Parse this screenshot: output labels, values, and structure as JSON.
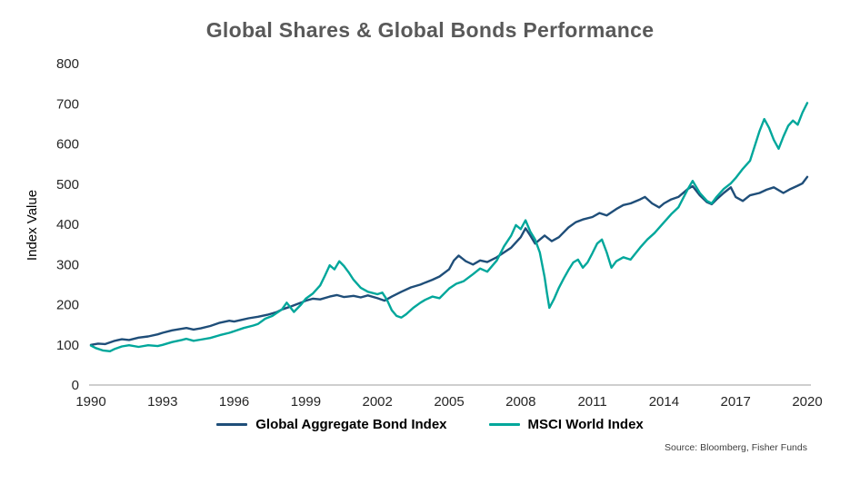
{
  "colors": {
    "title": "#595959",
    "axis_text": "#262626",
    "axis_line": "#9e9e9e",
    "background": "#ffffff"
  },
  "chart_data": {
    "type": "line",
    "title": "Global Shares & Global Bonds Performance",
    "xlabel": "",
    "ylabel": "Index Value",
    "xlim": [
      1990,
      2020
    ],
    "ylim": [
      0,
      800
    ],
    "x_ticks": [
      1990,
      1993,
      1996,
      1999,
      2002,
      2005,
      2008,
      2011,
      2014,
      2017,
      2020
    ],
    "y_ticks": [
      0,
      100,
      200,
      300,
      400,
      500,
      600,
      700,
      800
    ],
    "grid": false,
    "legend_position": "bottom",
    "source": "Source: Bloomberg, Fisher Funds",
    "series": [
      {
        "name": "Global Aggregate Bond Index",
        "color": "#1f4e79",
        "points": [
          [
            1990,
            100
          ],
          [
            1990.3,
            103
          ],
          [
            1990.6,
            102
          ],
          [
            1991,
            110
          ],
          [
            1991.3,
            114
          ],
          [
            1991.6,
            112
          ],
          [
            1992,
            118
          ],
          [
            1992.4,
            121
          ],
          [
            1992.8,
            126
          ],
          [
            1993,
            130
          ],
          [
            1993.4,
            136
          ],
          [
            1993.8,
            140
          ],
          [
            1994,
            142
          ],
          [
            1994.3,
            138
          ],
          [
            1994.6,
            141
          ],
          [
            1995,
            147
          ],
          [
            1995.4,
            155
          ],
          [
            1995.8,
            160
          ],
          [
            1996,
            158
          ],
          [
            1996.3,
            162
          ],
          [
            1996.6,
            166
          ],
          [
            1997,
            170
          ],
          [
            1997.4,
            175
          ],
          [
            1997.8,
            182
          ],
          [
            1998,
            188
          ],
          [
            1998.4,
            196
          ],
          [
            1998.8,
            205
          ],
          [
            1999,
            210
          ],
          [
            1999.3,
            215
          ],
          [
            1999.6,
            213
          ],
          [
            2000,
            220
          ],
          [
            2000.3,
            224
          ],
          [
            2000.6,
            219
          ],
          [
            2001,
            222
          ],
          [
            2001.3,
            218
          ],
          [
            2001.6,
            223
          ],
          [
            2002,
            216
          ],
          [
            2002.3,
            210
          ],
          [
            2002.6,
            220
          ],
          [
            2003,
            232
          ],
          [
            2003.4,
            243
          ],
          [
            2003.8,
            250
          ],
          [
            2004,
            255
          ],
          [
            2004.3,
            262
          ],
          [
            2004.6,
            270
          ],
          [
            2005,
            288
          ],
          [
            2005.2,
            310
          ],
          [
            2005.4,
            322
          ],
          [
            2005.7,
            308
          ],
          [
            2006,
            300
          ],
          [
            2006.3,
            310
          ],
          [
            2006.6,
            306
          ],
          [
            2007,
            318
          ],
          [
            2007.3,
            330
          ],
          [
            2007.6,
            342
          ],
          [
            2008,
            368
          ],
          [
            2008.2,
            390
          ],
          [
            2008.4,
            372
          ],
          [
            2008.6,
            352
          ],
          [
            2008.8,
            362
          ],
          [
            2009,
            372
          ],
          [
            2009.3,
            358
          ],
          [
            2009.6,
            368
          ],
          [
            2010,
            392
          ],
          [
            2010.3,
            405
          ],
          [
            2010.6,
            412
          ],
          [
            2011,
            418
          ],
          [
            2011.3,
            428
          ],
          [
            2011.6,
            422
          ],
          [
            2012,
            438
          ],
          [
            2012.3,
            448
          ],
          [
            2012.6,
            452
          ],
          [
            2013,
            462
          ],
          [
            2013.2,
            468
          ],
          [
            2013.5,
            452
          ],
          [
            2013.8,
            442
          ],
          [
            2014,
            452
          ],
          [
            2014.3,
            462
          ],
          [
            2014.6,
            468
          ],
          [
            2015,
            488
          ],
          [
            2015.2,
            495
          ],
          [
            2015.5,
            472
          ],
          [
            2015.8,
            455
          ],
          [
            2016,
            450
          ],
          [
            2016.2,
            462
          ],
          [
            2016.5,
            478
          ],
          [
            2016.8,
            492
          ],
          [
            2017,
            468
          ],
          [
            2017.3,
            458
          ],
          [
            2017.6,
            472
          ],
          [
            2018,
            478
          ],
          [
            2018.3,
            486
          ],
          [
            2018.6,
            492
          ],
          [
            2019,
            478
          ],
          [
            2019.3,
            488
          ],
          [
            2019.6,
            496
          ],
          [
            2019.8,
            502
          ],
          [
            2020,
            518
          ]
        ]
      },
      {
        "name": "MSCI World Index",
        "color": "#00a79b",
        "points": [
          [
            1990,
            98
          ],
          [
            1990.2,
            92
          ],
          [
            1990.5,
            86
          ],
          [
            1990.8,
            84
          ],
          [
            1991,
            90
          ],
          [
            1991.3,
            96
          ],
          [
            1991.6,
            99
          ],
          [
            1992,
            95
          ],
          [
            1992.4,
            99
          ],
          [
            1992.8,
            97
          ],
          [
            1993,
            100
          ],
          [
            1993.4,
            107
          ],
          [
            1993.8,
            112
          ],
          [
            1994,
            115
          ],
          [
            1994.3,
            110
          ],
          [
            1994.6,
            113
          ],
          [
            1995,
            117
          ],
          [
            1995.4,
            124
          ],
          [
            1995.8,
            130
          ],
          [
            1996,
            134
          ],
          [
            1996.4,
            142
          ],
          [
            1996.8,
            148
          ],
          [
            1997,
            152
          ],
          [
            1997.3,
            165
          ],
          [
            1997.6,
            172
          ],
          [
            1998,
            188
          ],
          [
            1998.2,
            205
          ],
          [
            1998.5,
            182
          ],
          [
            1998.8,
            200
          ],
          [
            1999,
            215
          ],
          [
            1999.3,
            228
          ],
          [
            1999.6,
            248
          ],
          [
            1999.8,
            272
          ],
          [
            2000,
            298
          ],
          [
            2000.2,
            288
          ],
          [
            2000.4,
            308
          ],
          [
            2000.6,
            296
          ],
          [
            2000.8,
            280
          ],
          [
            2001,
            262
          ],
          [
            2001.3,
            242
          ],
          [
            2001.6,
            232
          ],
          [
            2002,
            226
          ],
          [
            2002.2,
            230
          ],
          [
            2002.4,
            212
          ],
          [
            2002.6,
            186
          ],
          [
            2002.8,
            172
          ],
          [
            2003,
            168
          ],
          [
            2003.2,
            176
          ],
          [
            2003.5,
            192
          ],
          [
            2003.8,
            205
          ],
          [
            2004,
            212
          ],
          [
            2004.3,
            220
          ],
          [
            2004.6,
            216
          ],
          [
            2005,
            240
          ],
          [
            2005.3,
            252
          ],
          [
            2005.6,
            258
          ],
          [
            2006,
            276
          ],
          [
            2006.3,
            290
          ],
          [
            2006.6,
            282
          ],
          [
            2007,
            310
          ],
          [
            2007.3,
            345
          ],
          [
            2007.6,
            372
          ],
          [
            2007.8,
            398
          ],
          [
            2008,
            388
          ],
          [
            2008.2,
            410
          ],
          [
            2008.4,
            382
          ],
          [
            2008.6,
            362
          ],
          [
            2008.8,
            330
          ],
          [
            2009,
            268
          ],
          [
            2009.1,
            228
          ],
          [
            2009.2,
            192
          ],
          [
            2009.4,
            215
          ],
          [
            2009.6,
            242
          ],
          [
            2009.8,
            265
          ],
          [
            2010,
            286
          ],
          [
            2010.2,
            305
          ],
          [
            2010.4,
            312
          ],
          [
            2010.6,
            292
          ],
          [
            2010.8,
            305
          ],
          [
            2011,
            328
          ],
          [
            2011.2,
            352
          ],
          [
            2011.4,
            362
          ],
          [
            2011.6,
            330
          ],
          [
            2011.8,
            292
          ],
          [
            2012,
            308
          ],
          [
            2012.3,
            318
          ],
          [
            2012.6,
            312
          ],
          [
            2013,
            342
          ],
          [
            2013.3,
            362
          ],
          [
            2013.6,
            378
          ],
          [
            2014,
            405
          ],
          [
            2014.3,
            425
          ],
          [
            2014.6,
            442
          ],
          [
            2015,
            488
          ],
          [
            2015.2,
            508
          ],
          [
            2015.5,
            478
          ],
          [
            2015.8,
            458
          ],
          [
            2016,
            452
          ],
          [
            2016.2,
            468
          ],
          [
            2016.5,
            488
          ],
          [
            2016.8,
            502
          ],
          [
            2017,
            515
          ],
          [
            2017.3,
            538
          ],
          [
            2017.6,
            558
          ],
          [
            2018,
            632
          ],
          [
            2018.2,
            662
          ],
          [
            2018.4,
            640
          ],
          [
            2018.6,
            610
          ],
          [
            2018.8,
            588
          ],
          [
            2019,
            618
          ],
          [
            2019.2,
            645
          ],
          [
            2019.4,
            658
          ],
          [
            2019.6,
            648
          ],
          [
            2019.8,
            678
          ],
          [
            2020,
            702
          ]
        ]
      }
    ]
  }
}
